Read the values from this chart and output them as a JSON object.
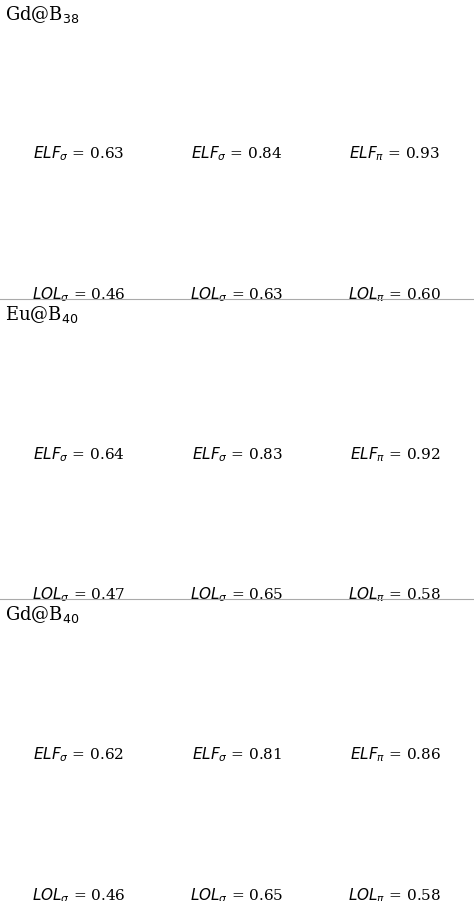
{
  "background_color": "#ffffff",
  "figsize": [
    4.74,
    9.01
  ],
  "dpi": 100,
  "sections": [
    {
      "label": "Gd@B$_{38}$",
      "rows": [
        {
          "type": "ELF",
          "captions": [
            {
              "text": "ELF",
              "sub": "σ",
              "value": "= 0.63"
            },
            {
              "text": "ELF",
              "sub": "σ",
              "value": "= 0.84"
            },
            {
              "text": "ELF",
              "sub": "π",
              "value": "= 0.93"
            }
          ]
        },
        {
          "type": "LOL",
          "captions": [
            {
              "text": "LOL",
              "sub": "σ",
              "value": "= 0.46"
            },
            {
              "text": "LOL",
              "sub": "σ",
              "value": "= 0.63"
            },
            {
              "text": "LOL",
              "sub": "π",
              "value": "= 0.60"
            }
          ]
        }
      ]
    },
    {
      "label": "Eu@B$_{40}$",
      "rows": [
        {
          "type": "ELF",
          "captions": [
            {
              "text": "ELF",
              "sub": "σ",
              "value": "= 0.64"
            },
            {
              "text": "ELF",
              "sub": "σ",
              "value": "= 0.83"
            },
            {
              "text": "ELF",
              "sub": "π",
              "value": "= 0.92"
            }
          ]
        },
        {
          "type": "LOL",
          "captions": [
            {
              "text": "LOL",
              "sub": "σ",
              "value": "= 0.47"
            },
            {
              "text": "LOL",
              "sub": "σ",
              "value": "= 0.65"
            },
            {
              "text": "LOL",
              "sub": "π",
              "value": "= 0.58"
            }
          ]
        }
      ]
    },
    {
      "label": "Gd@B$_{40}$",
      "rows": [
        {
          "type": "ELF",
          "captions": [
            {
              "text": "ELF",
              "sub": "σ",
              "value": "= 0.62"
            },
            {
              "text": "ELF",
              "sub": "σ",
              "value": "= 0.81"
            },
            {
              "text": "ELF",
              "sub": "π",
              "value": "= 0.86"
            }
          ]
        },
        {
          "type": "LOL",
          "captions": [
            {
              "text": "LOL",
              "sub": "σ",
              "value": "= 0.46"
            },
            {
              "text": "LOL",
              "sub": "σ",
              "value": "= 0.65"
            },
            {
              "text": "LOL",
              "sub": "π",
              "value": "= 0.58"
            }
          ]
        }
      ]
    }
  ],
  "label_fontsize": 13,
  "caption_fontsize": 11,
  "divider_color": "#aaaaaa",
  "divider_lw": 0.8
}
